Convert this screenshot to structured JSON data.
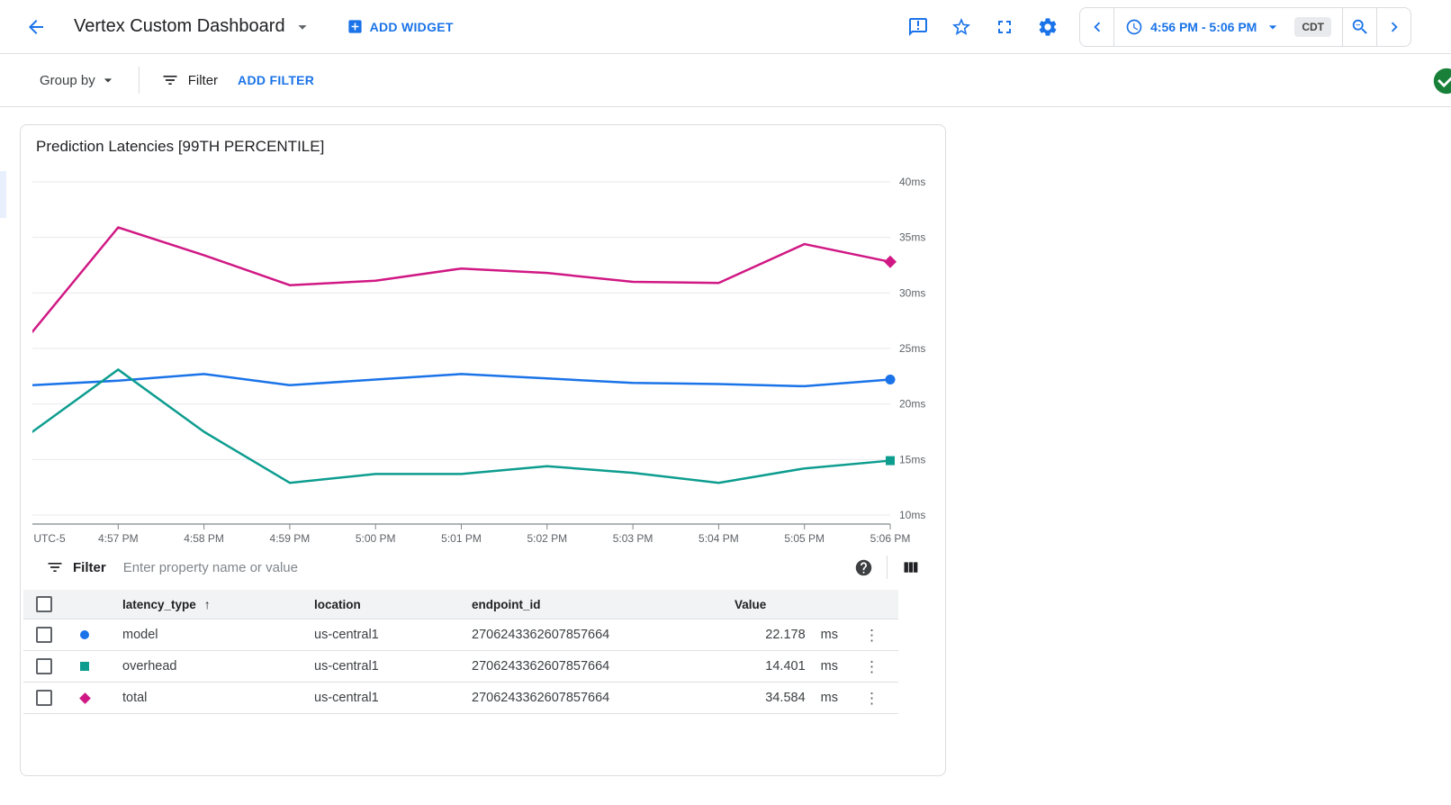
{
  "topbar": {
    "title": "Vertex Custom Dashboard",
    "add_widget_label": "ADD WIDGET",
    "time_range": "4:56 PM - 5:06 PM",
    "timezone_badge": "CDT"
  },
  "toolbar": {
    "group_by_label": "Group by",
    "filter_label": "Filter",
    "add_filter_label": "ADD FILTER"
  },
  "card": {
    "title": "Prediction Latencies [99TH PERCENTILE]"
  },
  "chart_data": {
    "type": "line",
    "title": "Prediction Latencies [99TH PERCENTILE]",
    "x_tick_labels": [
      "UTC-5",
      "4:57 PM",
      "4:58 PM",
      "4:59 PM",
      "5:00 PM",
      "5:01 PM",
      "5:02 PM",
      "5:03 PM",
      "5:04 PM",
      "5:05 PM",
      "5:06 PM"
    ],
    "y_ticks": [
      40,
      35,
      30,
      25,
      20,
      15,
      10
    ],
    "y_unit": "ms",
    "ylim": [
      10,
      40
    ],
    "grid": true,
    "legend_position": "none",
    "series": [
      {
        "name": "total",
        "color": "#d01884",
        "marker": "diamond",
        "values": [
          26.5,
          35.9,
          33.4,
          30.7,
          31.1,
          32.2,
          31.8,
          31.0,
          30.9,
          34.4,
          32.8
        ]
      },
      {
        "name": "model",
        "color": "#1a73e8",
        "marker": "circle",
        "values": [
          21.7,
          22.1,
          22.7,
          21.7,
          22.2,
          22.7,
          22.3,
          21.9,
          21.8,
          21.6,
          22.2
        ]
      },
      {
        "name": "overhead",
        "color": "#0d9d8f",
        "marker": "square",
        "values": [
          17.5,
          23.1,
          17.5,
          12.9,
          13.7,
          13.7,
          14.4,
          13.8,
          12.9,
          14.2,
          14.9
        ]
      }
    ]
  },
  "table": {
    "filter": {
      "label": "Filter",
      "placeholder": "Enter property name or value"
    },
    "columns": {
      "latency_type": "latency_type",
      "location": "location",
      "endpoint_id": "endpoint_id",
      "value": "Value"
    },
    "sort_arrow": "↑",
    "row_menu_glyph": "⋮",
    "rows": [
      {
        "latency_type": "model",
        "location": "us-central1",
        "endpoint_id": "2706243362607857664",
        "value": "22.178",
        "unit": "ms",
        "marker": "circle",
        "color": "#1a73e8"
      },
      {
        "latency_type": "overhead",
        "location": "us-central1",
        "endpoint_id": "2706243362607857664",
        "value": "14.401",
        "unit": "ms",
        "marker": "square",
        "color": "#0d9d8f"
      },
      {
        "latency_type": "total",
        "location": "us-central1",
        "endpoint_id": "2706243362607857664",
        "value": "34.584",
        "unit": "ms",
        "marker": "diamond",
        "color": "#d01884"
      }
    ]
  },
  "colors": {
    "accent_blue": "#1a73e8",
    "magenta_series": "#d01884",
    "teal_series": "#0d9d8f",
    "status_green": "#188038",
    "border": "#dadce0",
    "gridline": "#e8eaed"
  }
}
